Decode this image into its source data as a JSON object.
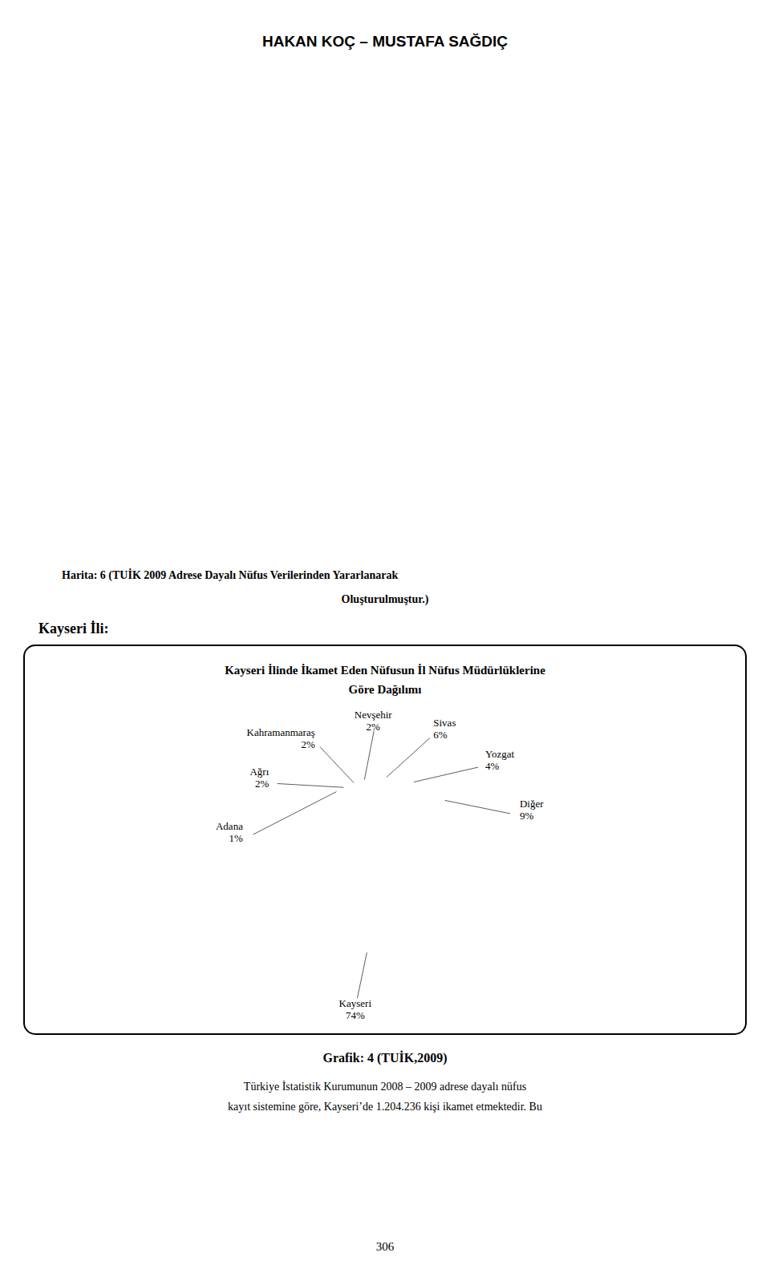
{
  "chart_data": {
    "type": "pie",
    "title": [
      "Kayseri İlinde İkamet Eden Nüfusun İl Nüfus Müdürlüklerine",
      "Göre Dağılımı"
    ],
    "categories": [
      "Adana",
      "Ağrı",
      "Kahramanmaraş",
      "Nevşehir",
      "Sivas",
      "Yozgat",
      "Diğer",
      "Kayseri"
    ],
    "values": [
      1,
      2,
      2,
      2,
      6,
      4,
      9,
      74
    ],
    "value_labels": [
      "1%",
      "2%",
      "2%",
      "2%",
      "6%",
      "4%",
      "9%",
      "74%"
    ],
    "data_labels": true,
    "annotations": [
      "HAKAN KOÇ – MUSTAFA SAĞDIÇ",
      "Harita: 6 (TUİK 2009 Adrese Dayalı Nüfus Verilerinden Yararlanarak",
      "Oluşturulmuştur.)",
      "Kayseri İli:",
      "Grafik: 4 (TUİK,2009)",
      "Türkiye İstatistik Kurumunun 2008 – 2009 adrese dayalı nüfus",
      "kayıt sistemine göre, Kayseri’de 1.204.236 kişi ikamet etmektedir. Bu",
      "306"
    ]
  }
}
